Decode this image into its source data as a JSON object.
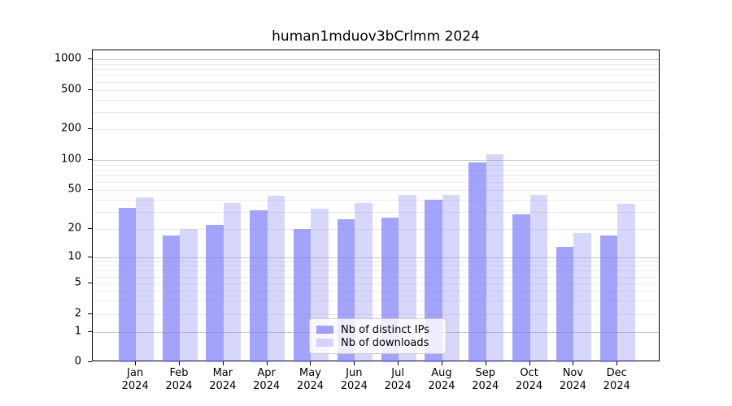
{
  "title": "human1mduov3bCrlmm 2024",
  "colors": {
    "background": "#ffffff",
    "spine": "#000000",
    "grid_major": "#c8c8c8",
    "grid_minor": "#ebebeb",
    "text": "#000000",
    "bar_base": "#7c7cf6",
    "legend_border": "#cccccc"
  },
  "chart_data": {
    "type": "bar",
    "title": "human1mduov3bCrlmm 2024",
    "categories": [
      "Jan",
      "Feb",
      "Mar",
      "Apr",
      "May",
      "Jun",
      "Jul",
      "Aug",
      "Sep",
      "Oct",
      "Nov",
      "Dec"
    ],
    "year_label": "2024",
    "series": [
      {
        "name": "Nb of distinct IPs",
        "color": "#7c7cf6",
        "alpha": 0.7,
        "values": [
          33,
          17,
          22,
          31,
          20,
          25,
          26,
          40,
          95,
          28,
          13,
          17
        ]
      },
      {
        "name": "Nb of downloads",
        "color": "#7c7cf6",
        "alpha": 0.3,
        "values": [
          42,
          20,
          37,
          44,
          32,
          37,
          45,
          45,
          114,
          45,
          18,
          36
        ]
      }
    ],
    "y_axis": {
      "scale": "symlog",
      "ticks": [
        0,
        1,
        2,
        5,
        10,
        20,
        50,
        100,
        200,
        500,
        1000
      ],
      "major_grid_values": [
        1,
        10,
        100,
        1000
      ],
      "minor_grid_values": [
        2,
        3,
        4,
        5,
        6,
        7,
        8,
        9,
        20,
        30,
        40,
        50,
        60,
        70,
        80,
        90,
        200,
        300,
        400,
        500,
        600,
        700,
        800,
        900
      ],
      "ylim": [
        0,
        1250
      ],
      "grid": true
    },
    "x_axis": {
      "grid": false
    },
    "legend_position": "lower center"
  }
}
